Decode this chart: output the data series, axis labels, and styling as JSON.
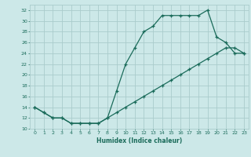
{
  "xlabel": "Humidex (Indice chaleur)",
  "bg_color": "#cce8e8",
  "line_color": "#1a6b5a",
  "grid_color": "#aacccc",
  "xlim": [
    -0.5,
    23.5
  ],
  "ylim": [
    10,
    33
  ],
  "xticks": [
    0,
    1,
    2,
    3,
    4,
    5,
    6,
    7,
    8,
    9,
    10,
    11,
    12,
    13,
    14,
    15,
    16,
    17,
    18,
    19,
    20,
    21,
    22,
    23
  ],
  "yticks": [
    10,
    12,
    14,
    16,
    18,
    20,
    22,
    24,
    26,
    28,
    30,
    32
  ],
  "curve1_x": [
    0,
    1,
    2,
    3,
    4,
    5,
    6,
    7,
    8,
    9,
    10,
    11,
    12,
    13,
    14,
    15,
    16,
    17,
    18,
    19,
    20,
    21,
    22,
    23
  ],
  "curve1_y": [
    14,
    13,
    12,
    12,
    11,
    11,
    11,
    11,
    12,
    17,
    22,
    25,
    28,
    29,
    31,
    31,
    31,
    31,
    31,
    32,
    27,
    26,
    24,
    24
  ],
  "curve2_x": [
    0,
    1,
    2,
    3,
    4,
    5,
    6,
    7,
    8,
    9,
    10,
    11,
    12,
    13,
    14,
    15,
    16,
    17,
    18,
    19,
    20,
    21,
    22,
    23
  ],
  "curve2_y": [
    14,
    13,
    12,
    12,
    11,
    11,
    11,
    11,
    12,
    13,
    14,
    15,
    16,
    17,
    18,
    19,
    20,
    21,
    22,
    23,
    24,
    25,
    25,
    24
  ]
}
